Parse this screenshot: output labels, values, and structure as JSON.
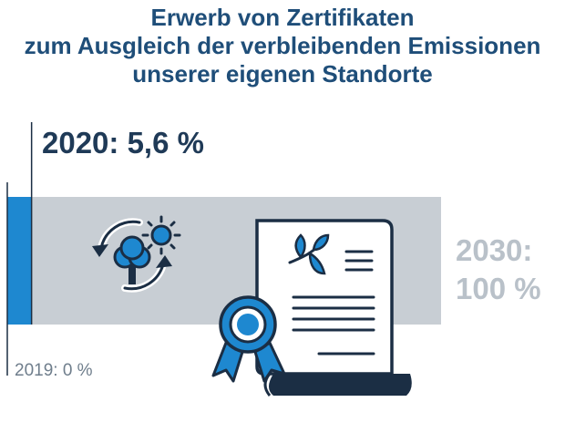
{
  "title_lines": [
    "Erwerb von Zertifikaten",
    "zum Ausgleich der verbleibenden Emissionen",
    "unserer eigenen Standorte"
  ],
  "chart_data": {
    "type": "bar",
    "orientation": "horizontal",
    "title": "Erwerb von Zertifikaten zum Ausgleich der verbleibenden Emissionen unserer eigenen Standorte",
    "unit": "%",
    "xlim": [
      0,
      100
    ],
    "points": [
      {
        "year": "2019",
        "value": 0,
        "label": "2019: 0 %"
      },
      {
        "year": "2020",
        "value": 5.6,
        "label": "2020: 5,6 %"
      },
      {
        "year": "2030",
        "value": 100,
        "label_line1": "2030:",
        "label_line2": "100 %"
      }
    ]
  },
  "colors": {
    "title": "#1f4e79",
    "progress": "#1e88d0",
    "target_bar": "#c8ced4",
    "target_text": "#b9c1c9",
    "dark": "#1b2e44"
  },
  "icons": [
    "cycle-tree-sun-icon",
    "certificate-leaf-icon",
    "rosette-icon"
  ]
}
